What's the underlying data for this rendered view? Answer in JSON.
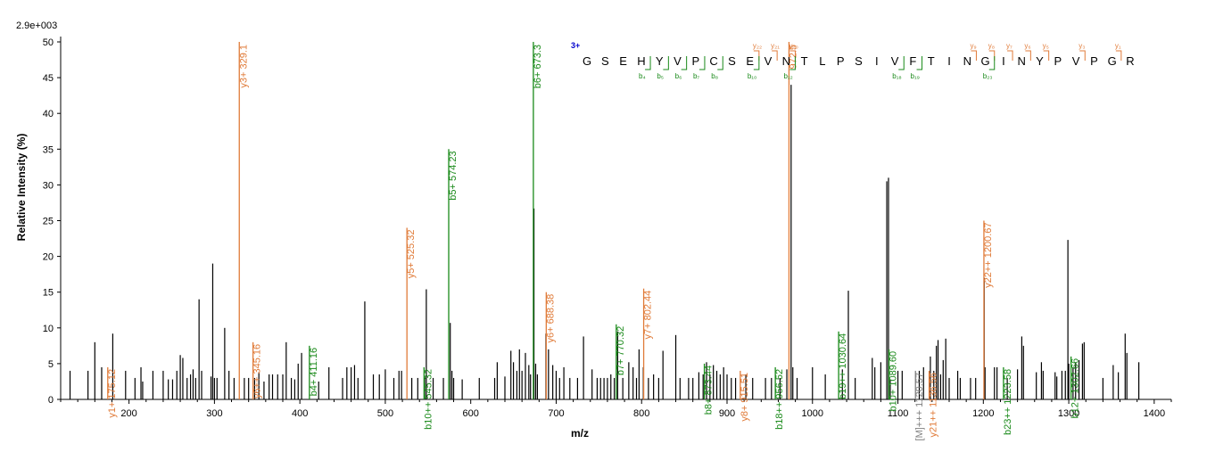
{
  "chart_data": {
    "type": "bar",
    "scale_label": "2.9e+003",
    "xlabel": "m/z",
    "ylabel": "Relative Intensity (%)",
    "xlim": [
      120,
      1420
    ],
    "ylim": [
      0,
      50
    ],
    "x_ticks": [
      200,
      300,
      400,
      500,
      600,
      700,
      800,
      900,
      1000,
      1100,
      1200,
      1300,
      1400
    ],
    "y_ticks": [
      0,
      5,
      10,
      15,
      20,
      25,
      30,
      35,
      40,
      45,
      50
    ],
    "colors": {
      "unassigned": "#000000",
      "y_ion": "#e07b39",
      "b_ion": "#1a8a1a",
      "other": "#808080",
      "charge": "#0000cc"
    },
    "peaks": [
      {
        "x": 131,
        "y": 4
      },
      {
        "x": 152,
        "y": 4
      },
      {
        "x": 160,
        "y": 8
      },
      {
        "x": 168,
        "y": 4.5
      },
      {
        "x": 181,
        "y": 9.2
      },
      {
        "x": 196,
        "y": 4
      },
      {
        "x": 207,
        "y": 3
      },
      {
        "x": 214,
        "y": 4.5
      },
      {
        "x": 216,
        "y": 2.5
      },
      {
        "x": 228,
        "y": 4
      },
      {
        "x": 240,
        "y": 4
      },
      {
        "x": 246,
        "y": 2.8
      },
      {
        "x": 251,
        "y": 2.8
      },
      {
        "x": 256,
        "y": 4
      },
      {
        "x": 260,
        "y": 6.2
      },
      {
        "x": 263,
        "y": 5.8
      },
      {
        "x": 268,
        "y": 3
      },
      {
        "x": 272,
        "y": 3.5
      },
      {
        "x": 275,
        "y": 4.2
      },
      {
        "x": 278,
        "y": 3
      },
      {
        "x": 282,
        "y": 14
      },
      {
        "x": 285,
        "y": 4
      },
      {
        "x": 296,
        "y": 3.2
      },
      {
        "x": 298,
        "y": 19
      },
      {
        "x": 300,
        "y": 3
      },
      {
        "x": 303,
        "y": 3
      },
      {
        "x": 312,
        "y": 10
      },
      {
        "x": 317,
        "y": 4
      },
      {
        "x": 323,
        "y": 3
      },
      {
        "x": 335,
        "y": 3
      },
      {
        "x": 340,
        "y": 3
      },
      {
        "x": 347,
        "y": 3
      },
      {
        "x": 352,
        "y": 3.8
      },
      {
        "x": 358,
        "y": 2.5
      },
      {
        "x": 364,
        "y": 3.5
      },
      {
        "x": 368,
        "y": 3.5
      },
      {
        "x": 374,
        "y": 3.5
      },
      {
        "x": 380,
        "y": 3.5
      },
      {
        "x": 384,
        "y": 8
      },
      {
        "x": 390,
        "y": 3
      },
      {
        "x": 394,
        "y": 2.8
      },
      {
        "x": 398,
        "y": 5
      },
      {
        "x": 402,
        "y": 6.5
      },
      {
        "x": 422,
        "y": 2.5
      },
      {
        "x": 434,
        "y": 4.5
      },
      {
        "x": 450,
        "y": 3
      },
      {
        "x": 455,
        "y": 4.5
      },
      {
        "x": 460,
        "y": 4.5
      },
      {
        "x": 464,
        "y": 4.8
      },
      {
        "x": 468,
        "y": 3
      },
      {
        "x": 476,
        "y": 13.7
      },
      {
        "x": 486,
        "y": 3.5
      },
      {
        "x": 493,
        "y": 3.5
      },
      {
        "x": 500,
        "y": 4.2
      },
      {
        "x": 510,
        "y": 3
      },
      {
        "x": 516,
        "y": 4
      },
      {
        "x": 519,
        "y": 4
      },
      {
        "x": 531,
        "y": 3
      },
      {
        "x": 538,
        "y": 3
      },
      {
        "x": 546,
        "y": 3
      },
      {
        "x": 548,
        "y": 15.4
      },
      {
        "x": 556,
        "y": 3
      },
      {
        "x": 568,
        "y": 3
      },
      {
        "x": 576,
        "y": 10.7
      },
      {
        "x": 578,
        "y": 4
      },
      {
        "x": 580,
        "y": 3
      },
      {
        "x": 590,
        "y": 2.8
      },
      {
        "x": 610,
        "y": 3
      },
      {
        "x": 628,
        "y": 3
      },
      {
        "x": 631,
        "y": 5.2
      },
      {
        "x": 640,
        "y": 3.2
      },
      {
        "x": 647,
        "y": 6.8
      },
      {
        "x": 650,
        "y": 5.2
      },
      {
        "x": 654,
        "y": 4
      },
      {
        "x": 657,
        "y": 7
      },
      {
        "x": 660,
        "y": 4
      },
      {
        "x": 664,
        "y": 6.5
      },
      {
        "x": 668,
        "y": 4.8
      },
      {
        "x": 670,
        "y": 3.5
      },
      {
        "x": 674,
        "y": 26.7
      },
      {
        "x": 676,
        "y": 5
      },
      {
        "x": 678,
        "y": 3.5
      },
      {
        "x": 688,
        "y": 9.2
      },
      {
        "x": 691,
        "y": 7
      },
      {
        "x": 696,
        "y": 4.8
      },
      {
        "x": 700,
        "y": 4
      },
      {
        "x": 704,
        "y": 3
      },
      {
        "x": 709,
        "y": 4.5
      },
      {
        "x": 716,
        "y": 3
      },
      {
        "x": 725,
        "y": 3
      },
      {
        "x": 732,
        "y": 8.8
      },
      {
        "x": 742,
        "y": 4.2
      },
      {
        "x": 748,
        "y": 3
      },
      {
        "x": 752,
        "y": 3
      },
      {
        "x": 756,
        "y": 3
      },
      {
        "x": 760,
        "y": 3
      },
      {
        "x": 764,
        "y": 3.5
      },
      {
        "x": 768,
        "y": 3
      },
      {
        "x": 772,
        "y": 9.5
      },
      {
        "x": 778,
        "y": 3
      },
      {
        "x": 785,
        "y": 5.2
      },
      {
        "x": 790,
        "y": 4.5
      },
      {
        "x": 794,
        "y": 3
      },
      {
        "x": 797,
        "y": 7
      },
      {
        "x": 802,
        "y": 4.5
      },
      {
        "x": 808,
        "y": 3
      },
      {
        "x": 814,
        "y": 3.5
      },
      {
        "x": 820,
        "y": 3
      },
      {
        "x": 825,
        "y": 6.8
      },
      {
        "x": 840,
        "y": 9
      },
      {
        "x": 845,
        "y": 3
      },
      {
        "x": 855,
        "y": 3
      },
      {
        "x": 860,
        "y": 3
      },
      {
        "x": 867,
        "y": 3.8
      },
      {
        "x": 872,
        "y": 3.5
      },
      {
        "x": 876,
        "y": 5.2
      },
      {
        "x": 880,
        "y": 3.5
      },
      {
        "x": 884,
        "y": 4.8
      },
      {
        "x": 888,
        "y": 4
      },
      {
        "x": 892,
        "y": 3.5
      },
      {
        "x": 896,
        "y": 4.5
      },
      {
        "x": 900,
        "y": 3.5
      },
      {
        "x": 905,
        "y": 3
      },
      {
        "x": 910,
        "y": 3
      },
      {
        "x": 922,
        "y": 3.5
      },
      {
        "x": 930,
        "y": 3
      },
      {
        "x": 945,
        "y": 3
      },
      {
        "x": 952,
        "y": 3
      },
      {
        "x": 962,
        "y": 3
      },
      {
        "x": 970,
        "y": 4.2
      },
      {
        "x": 975,
        "y": 44
      },
      {
        "x": 977,
        "y": 4.5
      },
      {
        "x": 982,
        "y": 3
      },
      {
        "x": 1000,
        "y": 4.5
      },
      {
        "x": 1015,
        "y": 3.5
      },
      {
        "x": 1035,
        "y": 4.2
      },
      {
        "x": 1042,
        "y": 15.2
      },
      {
        "x": 1050,
        "y": 3
      },
      {
        "x": 1070,
        "y": 5.8
      },
      {
        "x": 1073,
        "y": 4.5
      },
      {
        "x": 1080,
        "y": 5.2
      },
      {
        "x": 1087,
        "y": 30.5
      },
      {
        "x": 1089,
        "y": 31
      },
      {
        "x": 1091,
        "y": 2.8
      },
      {
        "x": 1100,
        "y": 4
      },
      {
        "x": 1105,
        "y": 4
      },
      {
        "x": 1125,
        "y": 4
      },
      {
        "x": 1130,
        "y": 4.5
      },
      {
        "x": 1138,
        "y": 6
      },
      {
        "x": 1142,
        "y": 4
      },
      {
        "x": 1145,
        "y": 7.5
      },
      {
        "x": 1147,
        "y": 8.3
      },
      {
        "x": 1150,
        "y": 3.5
      },
      {
        "x": 1153,
        "y": 5.5
      },
      {
        "x": 1156,
        "y": 8.5
      },
      {
        "x": 1160,
        "y": 3
      },
      {
        "x": 1170,
        "y": 4
      },
      {
        "x": 1173,
        "y": 3
      },
      {
        "x": 1185,
        "y": 3
      },
      {
        "x": 1191,
        "y": 3
      },
      {
        "x": 1201,
        "y": 17
      },
      {
        "x": 1202,
        "y": 4.5
      },
      {
        "x": 1213,
        "y": 4.5
      },
      {
        "x": 1216,
        "y": 4.5
      },
      {
        "x": 1228,
        "y": 3
      },
      {
        "x": 1240,
        "y": 4.2
      },
      {
        "x": 1245,
        "y": 8.8
      },
      {
        "x": 1247,
        "y": 7.5
      },
      {
        "x": 1262,
        "y": 3.8
      },
      {
        "x": 1268,
        "y": 5.2
      },
      {
        "x": 1270,
        "y": 4
      },
      {
        "x": 1284,
        "y": 3.8
      },
      {
        "x": 1286,
        "y": 3.2
      },
      {
        "x": 1292,
        "y": 4
      },
      {
        "x": 1296,
        "y": 4
      },
      {
        "x": 1299,
        "y": 22.3
      },
      {
        "x": 1300,
        "y": 5
      },
      {
        "x": 1305,
        "y": 4.5
      },
      {
        "x": 1308,
        "y": 5.2
      },
      {
        "x": 1312,
        "y": 5.5
      },
      {
        "x": 1316,
        "y": 7.8
      },
      {
        "x": 1318,
        "y": 8
      },
      {
        "x": 1340,
        "y": 3
      },
      {
        "x": 1352,
        "y": 4.8
      },
      {
        "x": 1358,
        "y": 3.8
      },
      {
        "x": 1366,
        "y": 9.2
      },
      {
        "x": 1368,
        "y": 6.5
      },
      {
        "x": 1382,
        "y": 5.2
      }
    ],
    "annotated_peaks": [
      {
        "x": 175.12,
        "y": 4.5,
        "label": "y1+ 175.12",
        "type": "y"
      },
      {
        "x": 329.1,
        "y": 50,
        "label": "y3+ 329.1",
        "type": "y"
      },
      {
        "x": 345.16,
        "y": 8,
        "label": "y6++ 345.16",
        "type": "y"
      },
      {
        "x": 411.16,
        "y": 7.5,
        "label": "b4+ 411.16",
        "type": "b"
      },
      {
        "x": 525.32,
        "y": 24,
        "label": "y5+ 525.32",
        "type": "y"
      },
      {
        "x": 545.32,
        "y": 4.5,
        "label": "b10++ 545.32",
        "type": "b"
      },
      {
        "x": 574.23,
        "y": 35,
        "label": "b5+ 574.23",
        "type": "b"
      },
      {
        "x": 673.3,
        "y": 50,
        "label": "b6+ 673.3",
        "type": "b"
      },
      {
        "x": 688.38,
        "y": 15,
        "label": "y6+ 688.38",
        "type": "y"
      },
      {
        "x": 770.32,
        "y": 10.5,
        "label": "b7+ 770.32",
        "type": "b"
      },
      {
        "x": 802.44,
        "y": 15.5,
        "label": "y7+ 802.44",
        "type": "y"
      },
      {
        "x": 873.44,
        "y": 5,
        "label": "b8+ 873.44",
        "type": "b"
      },
      {
        "x": 915.51,
        "y": 4,
        "label": "y8+ 915.51",
        "type": "y"
      },
      {
        "x": 956.52,
        "y": 4.5,
        "label": "b18++ 956.52",
        "type": "b"
      },
      {
        "x": 972.5,
        "y": 50,
        "label": "972.5",
        "type": "y"
      },
      {
        "x": 1030.64,
        "y": 9.5,
        "label": "b19++ 1030.64",
        "type": "b"
      },
      {
        "x": 1089.6,
        "y": 7,
        "label": "b10+ 1089.60",
        "type": "b"
      },
      {
        "x": 1120.57,
        "y": 4,
        "label": "[M]+++ 1120.57",
        "type": "other"
      },
      {
        "x": 1136.56,
        "y": 4,
        "label": "y21++ 1136.56",
        "type": "y"
      },
      {
        "x": 1200.67,
        "y": 25,
        "label": "y22++ 1200.67",
        "type": "y"
      },
      {
        "x": 1223.58,
        "y": 4.5,
        "label": "b23++ 1223.58",
        "type": "b"
      },
      {
        "x": 1302.66,
        "y": 6,
        "label": "b12+ 1302.66",
        "type": "b"
      }
    ],
    "sequence": {
      "charge": "3+",
      "residues": [
        "G",
        "S",
        "E",
        "H",
        "Y",
        "V",
        "P",
        "C",
        "S",
        "E",
        "V",
        "N",
        "T",
        "L",
        "P",
        "S",
        "I",
        "V",
        "F",
        "T",
        "I",
        "N",
        "G",
        "I",
        "N",
        "Y",
        "P",
        "V",
        "P",
        "G",
        "R"
      ],
      "y_marks": [
        {
          "after": 10,
          "label": "y₂₂"
        },
        {
          "after": 11,
          "label": "y₂₁"
        },
        {
          "after": 12,
          "label": "y₂₀"
        },
        {
          "after": 22,
          "label": "y₉"
        },
        {
          "after": 23,
          "label": "y₈"
        },
        {
          "after": 24,
          "label": "y₇"
        },
        {
          "after": 25,
          "label": "y₆"
        },
        {
          "after": 26,
          "label": "y₅"
        },
        {
          "after": 28,
          "label": "y₃"
        },
        {
          "after": 30,
          "label": "y₁"
        }
      ],
      "b_marks": [
        {
          "after": 3,
          "label": "b₄"
        },
        {
          "after": 4,
          "label": "b₅"
        },
        {
          "after": 5,
          "label": "b₆"
        },
        {
          "after": 6,
          "label": "b₇"
        },
        {
          "after": 7,
          "label": "b₈"
        },
        {
          "after": 9,
          "label": "b₁₀"
        },
        {
          "after": 11,
          "label": "b₁₂"
        },
        {
          "after": 17,
          "label": "b₁₈"
        },
        {
          "after": 18,
          "label": "b₁₉"
        },
        {
          "after": 22,
          "label": "b₂₃"
        }
      ]
    }
  }
}
